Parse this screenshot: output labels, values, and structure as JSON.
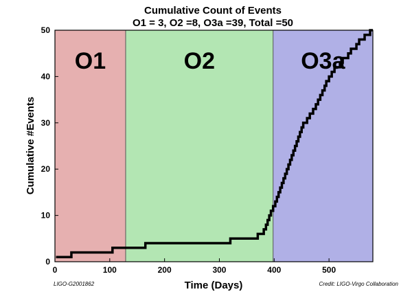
{
  "chart_data": {
    "type": "line",
    "title": "Cumulative Count of Events",
    "subtitle": "O1 = 3, O2 =8, O3a =39, Total =50",
    "xlabel": "Time (Days)",
    "ylabel": "Cumulative #Events",
    "xlim": [
      0,
      580
    ],
    "ylim": [
      0,
      50
    ],
    "xticks": [
      0,
      100,
      200,
      300,
      400,
      500
    ],
    "yticks": [
      0,
      10,
      20,
      30,
      40,
      50
    ],
    "grid": false,
    "regions": [
      {
        "name": "O1",
        "start": 0,
        "end": 129,
        "color": "#e6b0b0"
      },
      {
        "name": "O2",
        "start": 129,
        "end": 398,
        "color": "#b3e6b3"
      },
      {
        "name": "O3a",
        "start": 398,
        "end": 580,
        "color": "#b0b0e6"
      }
    ],
    "series": [
      {
        "color": "#000000",
        "x": [
          2,
          30,
          105,
          165,
          320,
          370,
          381,
          385,
          388,
          391,
          394,
          398,
          402,
          405,
          408,
          411,
          414,
          417,
          420,
          423,
          426,
          429,
          432,
          435,
          438,
          441,
          444,
          447,
          450,
          453,
          456,
          460,
          465,
          471,
          476,
          480,
          484,
          488,
          492,
          495,
          500,
          505,
          510,
          515,
          520,
          525,
          530,
          535,
          540,
          545,
          550,
          555,
          560,
          565,
          570,
          575,
          578
        ],
        "y": [
          1,
          2,
          3,
          4,
          5,
          6,
          7,
          8,
          9,
          10,
          11,
          12,
          13,
          14,
          15,
          16,
          17,
          18,
          19,
          20,
          21,
          22,
          23,
          24,
          25,
          26,
          27,
          28,
          29,
          30,
          30,
          31,
          32,
          33,
          34,
          35,
          36,
          37,
          38,
          39,
          40,
          41,
          42,
          42,
          43,
          44,
          44,
          45,
          46,
          46,
          47,
          48,
          48,
          49,
          49,
          50,
          50
        ]
      }
    ]
  },
  "footer": {
    "left": "LIGO-G2001862",
    "right": "Credit: LIGO-Virgo Collaboration"
  }
}
